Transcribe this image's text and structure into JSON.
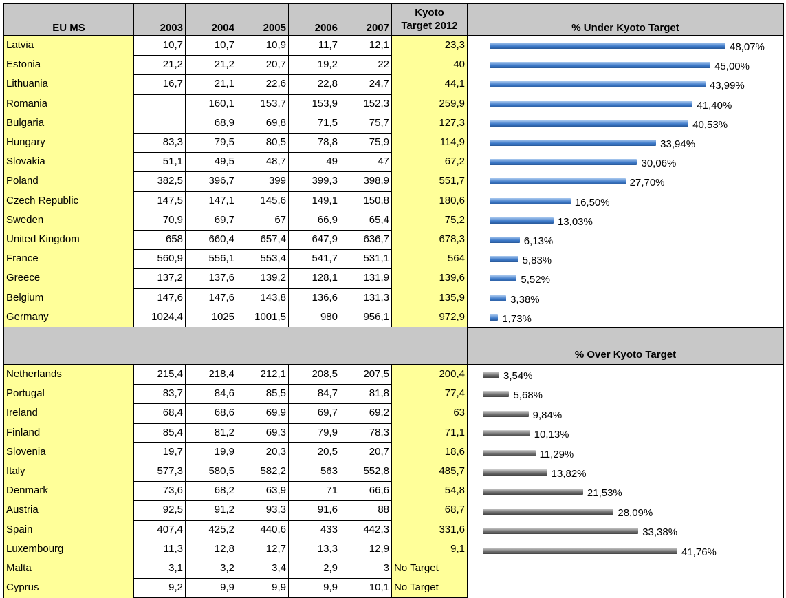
{
  "table": {
    "header": [
      "EU MS",
      "2003",
      "2004",
      "2005",
      "2006",
      "2007",
      [
        "Kyoto",
        "Target 2012"
      ]
    ],
    "under_rows": [
      [
        "Latvia",
        "10,7",
        "10,7",
        "10,9",
        "11,7",
        "12,1",
        "23,3"
      ],
      [
        "Estonia",
        "21,2",
        "21,2",
        "20,7",
        "19,2",
        "22",
        "40"
      ],
      [
        "Lithuania",
        "16,7",
        "21,1",
        "22,6",
        "22,8",
        "24,7",
        "44,1"
      ],
      [
        "Romania",
        null,
        "160,1",
        "153,7",
        "153,9",
        "152,3",
        "259,9"
      ],
      [
        "Bulgaria",
        null,
        "68,9",
        "69,8",
        "71,5",
        "75,7",
        "127,3"
      ],
      [
        "Hungary",
        "83,3",
        "79,5",
        "80,5",
        "78,8",
        "75,9",
        "114,9"
      ],
      [
        "Slovakia",
        "51,1",
        "49,5",
        "48,7",
        "49",
        "47",
        "67,2"
      ],
      [
        "Poland",
        "382,5",
        "396,7",
        "399",
        "399,3",
        "398,9",
        "551,7"
      ],
      [
        "Czech Republic",
        "147,5",
        "147,1",
        "145,6",
        "149,1",
        "150,8",
        "180,6"
      ],
      [
        "Sweden",
        "70,9",
        "69,7",
        "67",
        "66,9",
        "65,4",
        "75,2"
      ],
      [
        "United Kingdom",
        "658",
        "660,4",
        "657,4",
        "647,9",
        "636,7",
        "678,3"
      ],
      [
        "France",
        "560,9",
        "556,1",
        "553,4",
        "541,7",
        "531,1",
        "564"
      ],
      [
        "Greece",
        "137,2",
        "137,6",
        "139,2",
        "128,1",
        "131,9",
        "139,6"
      ],
      [
        "Belgium",
        "147,6",
        "147,6",
        "143,8",
        "136,6",
        "131,3",
        "135,9"
      ],
      [
        "Germany",
        "1024,4",
        "1025",
        "1001,5",
        "980",
        "956,1",
        "972,9"
      ]
    ],
    "over_rows": [
      [
        "Netherlands",
        "215,4",
        "218,4",
        "212,1",
        "208,5",
        "207,5",
        "200,4"
      ],
      [
        "Portugal",
        "83,7",
        "84,6",
        "85,5",
        "84,7",
        "81,8",
        "77,4"
      ],
      [
        "Ireland",
        "68,4",
        "68,6",
        "69,9",
        "69,7",
        "69,2",
        "63"
      ],
      [
        "Finland",
        "85,4",
        "81,2",
        "69,3",
        "79,9",
        "78,3",
        "71,1"
      ],
      [
        "Slovenia",
        "19,7",
        "19,9",
        "20,3",
        "20,5",
        "20,7",
        "18,6"
      ],
      [
        "Italy",
        "577,3",
        "580,5",
        "582,2",
        "563",
        "552,8",
        "485,7"
      ],
      [
        "Denmark",
        "73,6",
        "68,2",
        "63,9",
        "71",
        "66,6",
        "54,8"
      ],
      [
        "Austria",
        "92,5",
        "91,2",
        "93,3",
        "91,6",
        "88",
        "68,7"
      ],
      [
        "Spain",
        "407,4",
        "425,2",
        "440,6",
        "433",
        "442,3",
        "331,6"
      ],
      [
        "Luxembourg",
        "11,3",
        "12,8",
        "12,7",
        "13,3",
        "12,9",
        "9,1"
      ],
      [
        "Malta",
        "3,1",
        "3,2",
        "3,4",
        "2,9",
        "3",
        "No Target"
      ],
      [
        "Cyprus",
        "9,2",
        "9,9",
        "9,9",
        "9,9",
        "10,1",
        "No Target"
      ]
    ]
  },
  "under_chart": {
    "title": "% Under Kyoto Target",
    "values": [
      48.07,
      45.0,
      43.99,
      41.4,
      40.53,
      33.94,
      30.06,
      27.7,
      16.5,
      13.03,
      6.13,
      5.83,
      5.52,
      3.38,
      1.73
    ],
    "value_labels": [
      "48,07%",
      "45,00%",
      "43,99%",
      "41,40%",
      "40,53%",
      "33,94%",
      "30,06%",
      "27,70%",
      "16,50%",
      "13,03%",
      "6,13%",
      "5,83%",
      "5,52%",
      "3,38%",
      "1,73%"
    ]
  },
  "over_chart": {
    "title": "% Over Kyoto Target",
    "values": [
      3.54,
      5.68,
      9.84,
      10.13,
      11.29,
      13.82,
      21.53,
      28.09,
      33.38,
      41.76
    ],
    "value_labels": [
      "3,54%",
      "5,68%",
      "9,84%",
      "10,13%",
      "11,29%",
      "13,82%",
      "21,53%",
      "28,09%",
      "33,38%",
      "41,76%"
    ]
  }
}
